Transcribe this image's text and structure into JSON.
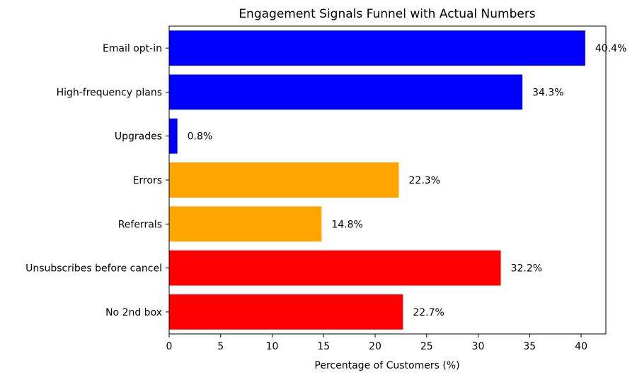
{
  "chart_data": {
    "type": "bar",
    "orientation": "horizontal",
    "title": "Engagement Signals Funnel with Actual Numbers",
    "xlabel": "Percentage of Customers (%)",
    "ylabel": "",
    "xlim": [
      0,
      42.4
    ],
    "x_ticks": [
      0,
      5,
      10,
      15,
      20,
      25,
      30,
      35,
      40
    ],
    "grid": false,
    "legend": "none",
    "categories": [
      "Email opt-in",
      "High-frequency plans",
      "Upgrades",
      "Errors",
      "Referrals",
      "Unsubscribes before cancel",
      "No 2nd box"
    ],
    "values": [
      40.4,
      34.3,
      0.8,
      22.3,
      14.8,
      32.2,
      22.7
    ],
    "data_labels": [
      "40.4%",
      "34.3%",
      "0.8%",
      "22.3%",
      "14.8%",
      "32.2%",
      "22.7%"
    ],
    "colors": [
      "#0000ff",
      "#0000ff",
      "#0000ff",
      "#ffa500",
      "#ffa500",
      "#ff0000",
      "#ff0000"
    ]
  }
}
